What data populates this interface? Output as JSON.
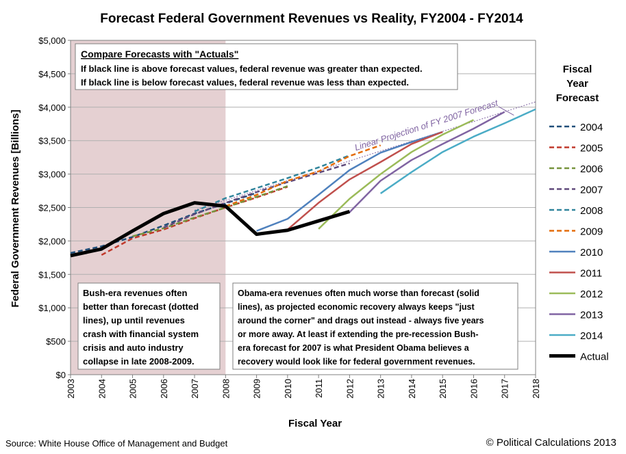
{
  "chart_data": {
    "type": "line",
    "title": "Forecast Federal Government Revenues vs Reality, FY2004 - FY2014",
    "xlabel": "Fiscal Year",
    "ylabel": "Federal Government Revenues [Billions]",
    "xlim": [
      2003,
      2018
    ],
    "ylim": [
      0,
      5000
    ],
    "x_ticks": [
      "2003",
      "2004",
      "2005",
      "2006",
      "2007",
      "2008",
      "2009",
      "2010",
      "2011",
      "2012",
      "2013",
      "2014",
      "2015",
      "2016",
      "2017",
      "2018"
    ],
    "y_ticks": [
      {
        "value": 0,
        "label": "$0"
      },
      {
        "value": 500,
        "label": "$500"
      },
      {
        "value": 1000,
        "label": "$1,000"
      },
      {
        "value": 1500,
        "label": "$1,500"
      },
      {
        "value": 2000,
        "label": "$2,000"
      },
      {
        "value": 2500,
        "label": "$2,500"
      },
      {
        "value": 3000,
        "label": "$3,000"
      },
      {
        "value": 3500,
        "label": "$3,500"
      },
      {
        "value": 4000,
        "label": "$4,000"
      },
      {
        "value": 4500,
        "label": "$4,500"
      },
      {
        "value": 5000,
        "label": "$5,000"
      }
    ],
    "shaded_region": {
      "x_start": 2003,
      "x_end": 2008,
      "color": "#e5d0d2"
    },
    "legend": {
      "title": "Fiscal Year Forecast",
      "title_lines": [
        "Fiscal",
        "Year",
        "Forecast"
      ],
      "placement": "right"
    },
    "series": [
      {
        "name": "2004",
        "color": "#1f4e79",
        "style": "dashed",
        "x": [
          2003,
          2004,
          2005,
          2006,
          2007,
          2008,
          2009
        ],
        "values": [
          1820,
          1920,
          2060,
          2230,
          2410,
          2560,
          2720
        ]
      },
      {
        "name": "2005",
        "color": "#c0392b",
        "style": "dashed",
        "x": [
          2004,
          2005,
          2006,
          2007,
          2008,
          2009,
          2010
        ],
        "values": [
          1790,
          2040,
          2170,
          2340,
          2500,
          2650,
          2810
        ]
      },
      {
        "name": "2006",
        "color": "#76933c",
        "style": "dashed",
        "x": [
          2005,
          2006,
          2007,
          2008,
          2009,
          2010
        ],
        "values": [
          2070,
          2190,
          2350,
          2500,
          2660,
          2820
        ]
      },
      {
        "name": "2007",
        "color": "#604a7b",
        "style": "dashed",
        "x": [
          2006,
          2007,
          2008,
          2009,
          2010,
          2011,
          2012
        ],
        "values": [
          2200,
          2400,
          2570,
          2730,
          2880,
          3020,
          3160
        ]
      },
      {
        "name": "2008",
        "color": "#31859c",
        "style": "dashed",
        "x": [
          2007,
          2008,
          2009,
          2010,
          2011,
          2012
        ],
        "values": [
          2440,
          2640,
          2790,
          2940,
          3100,
          3280
        ]
      },
      {
        "name": "2009",
        "color": "#e46c0a",
        "style": "dashed",
        "x": [
          2008,
          2009,
          2010,
          2011,
          2012,
          2013
        ],
        "values": [
          2520,
          2690,
          2900,
          3040,
          3270,
          3430
        ]
      },
      {
        "name": "2010",
        "color": "#4f81bd",
        "style": "solid",
        "x": [
          2009,
          2010,
          2011,
          2012,
          2013,
          2014,
          2015
        ],
        "values": [
          2150,
          2330,
          2690,
          3060,
          3320,
          3480,
          3630
        ]
      },
      {
        "name": "2011",
        "color": "#c0504d",
        "style": "solid",
        "x": [
          2010,
          2011,
          2012,
          2013,
          2014,
          2015
        ],
        "values": [
          2170,
          2570,
          2920,
          3180,
          3450,
          3630
        ]
      },
      {
        "name": "2012",
        "color": "#9bbb59",
        "style": "solid",
        "x": [
          2011,
          2012,
          2013,
          2014,
          2015,
          2016
        ],
        "values": [
          2180,
          2630,
          3000,
          3330,
          3590,
          3810
        ]
      },
      {
        "name": "2013",
        "color": "#8064a2",
        "style": "solid",
        "x": [
          2012,
          2013,
          2014,
          2015,
          2016,
          2017
        ],
        "values": [
          2430,
          2900,
          3210,
          3450,
          3680,
          3930
        ]
      },
      {
        "name": "2014",
        "color": "#4bacc6",
        "style": "solid",
        "x": [
          2013,
          2014,
          2015,
          2016,
          2017,
          2018
        ],
        "values": [
          2710,
          3030,
          3330,
          3560,
          3760,
          3970
        ]
      },
      {
        "name": "Actual",
        "color": "#000000",
        "style": "thick",
        "x": [
          2003,
          2004,
          2005,
          2006,
          2007,
          2008,
          2009,
          2010,
          2011,
          2012
        ],
        "values": [
          1780,
          1880,
          2150,
          2410,
          2570,
          2520,
          2100,
          2160,
          2300,
          2440
        ]
      }
    ],
    "projection": {
      "label": "Linear Projection of FY 2007 Forecast",
      "color": "#8064a2",
      "x": [
        2007,
        2018
      ],
      "values": [
        2460,
        4080
      ]
    }
  },
  "annotations": {
    "compare": {
      "heading": "Compare Forecasts with \"Actuals\"",
      "line1": "If black line is above forecast values, federal revenue was greater than expected.",
      "line2": "If black line is below forecast values, federal revenue was less than expected."
    },
    "bush": {
      "lines": [
        "Bush-era revenues often",
        "better than forecast (dotted",
        "lines), up until revenues",
        "crash with financial system",
        "crisis and auto industry",
        "collapse in late 2008-2009."
      ]
    },
    "obama": {
      "lines": [
        "Obama-era revenues often much worse than forecast (solid",
        "lines), as projected economic recovery always keeps \"just",
        "around the corner\" and drags out instead - always five years",
        "or more away.  At least if extending the pre-recession Bush-",
        "era forecast for 2007 is what President Obama believes a",
        "recovery would look like for federal government revenues."
      ]
    }
  },
  "footer": {
    "source": "Source: White House Office of Management and Budget",
    "copyright": "© Political Calculations 2013"
  }
}
